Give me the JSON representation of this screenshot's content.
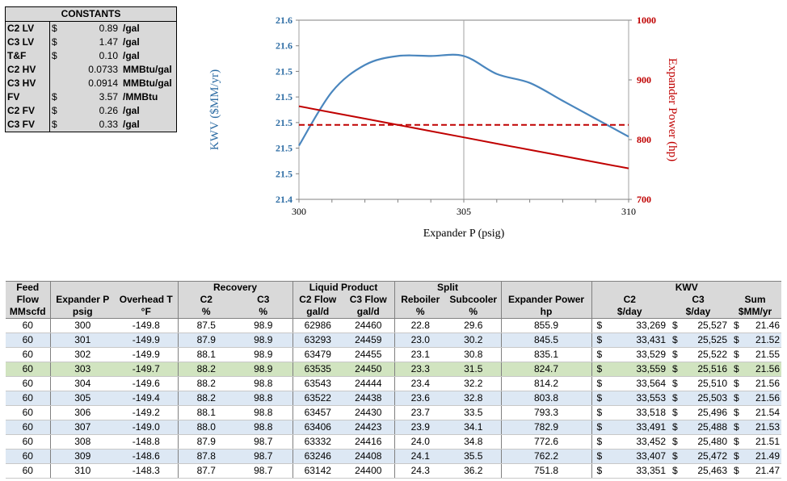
{
  "constants": {
    "title": "CONSTANTS",
    "rows": [
      {
        "label": "C2 LV",
        "currency": "$",
        "value": "0.89",
        "unit": "/gal"
      },
      {
        "label": "C3 LV",
        "currency": "$",
        "value": "1.47",
        "unit": "/gal"
      },
      {
        "label": "T&F",
        "currency": "$",
        "value": "0.10",
        "unit": "/gal"
      },
      {
        "label": "C2 HV",
        "currency": "",
        "value": "0.0733",
        "unit": "MMBtu/gal"
      },
      {
        "label": "C3 HV",
        "currency": "",
        "value": "0.0914",
        "unit": "MMBtu/gal"
      },
      {
        "label": "FV",
        "currency": "$",
        "value": "3.57",
        "unit": "/MMBtu"
      },
      {
        "label": "C2 FV",
        "currency": "$",
        "value": "0.26",
        "unit": "/gal"
      },
      {
        "label": "C3 FV",
        "currency": "$",
        "value": "0.33",
        "unit": "/gal"
      }
    ]
  },
  "chart_data": {
    "type": "line",
    "xlabel": "Expander P (psig)",
    "ylabel_left": "KWV ($MM/yr)",
    "ylabel_right": "Expander Power (hp)",
    "x_ticks": [
      "300",
      "305",
      "310"
    ],
    "xlim": [
      300,
      310
    ],
    "y_left_ticks": [
      "21.4",
      "21.5",
      "21.5",
      "21.5",
      "21.5",
      "21.5",
      "21.6",
      "21.6"
    ],
    "y_left_lim": [
      21.4,
      21.6
    ],
    "y_right_ticks": [
      "700",
      "800",
      "900",
      "1000"
    ],
    "y_right_lim": [
      700,
      1000
    ],
    "grid": "vertical",
    "colors": {
      "kwv": "#4a86be",
      "power": "#c00000",
      "axis_left": "#2e6da4",
      "axis_right": "#c00000"
    },
    "series": [
      {
        "axis": "left",
        "x": [
          300,
          301,
          302,
          303,
          304,
          305,
          306,
          307,
          308,
          309,
          310
        ],
        "values": [
          21.46,
          21.52,
          21.55,
          21.56,
          21.56,
          21.56,
          21.54,
          21.53,
          21.51,
          21.49,
          21.47
        ]
      },
      {
        "axis": "right",
        "x": [
          300,
          301,
          302,
          303,
          304,
          305,
          306,
          307,
          308,
          309,
          310
        ],
        "values": [
          855.9,
          845.5,
          835.1,
          824.7,
          814.2,
          803.8,
          793.3,
          782.9,
          772.6,
          762.2,
          751.8
        ]
      },
      {
        "axis": "right",
        "style": "dashed",
        "x": [
          300,
          310
        ],
        "values": [
          824.7,
          824.7
        ]
      }
    ]
  },
  "table": {
    "group_headers": {
      "feed": "Feed",
      "recovery": "Recovery",
      "liquid": "Liquid Product",
      "split": "Split",
      "kwv": "KWV"
    },
    "col_headers": [
      "Flow",
      "Expander P",
      "Overhead T",
      "C2",
      "C3",
      "C2 Flow",
      "C3 Flow",
      "Reboiler",
      "Subcooler",
      "Expander Power",
      "C2",
      "C3",
      "Sum"
    ],
    "units": [
      "MMscfd",
      "psig",
      "°F",
      "%",
      "%",
      "gal/d",
      "gal/d",
      "%",
      "%",
      "hp",
      "$/day",
      "$/day",
      "$MM/yr"
    ],
    "rows": [
      {
        "flow": "60",
        "p": "300",
        "t": "-149.8",
        "c2": "87.5",
        "c3": "98.9",
        "c2f": "62986",
        "c3f": "24460",
        "reb": "22.8",
        "sub": "29.6",
        "hp": "855.9",
        "kc2": "33,269",
        "kc3": "25,527",
        "sum": "21.46",
        "style": "white"
      },
      {
        "flow": "60",
        "p": "301",
        "t": "-149.9",
        "c2": "87.9",
        "c3": "98.9",
        "c2f": "63293",
        "c3f": "24459",
        "reb": "23.0",
        "sub": "30.2",
        "hp": "845.5",
        "kc2": "33,431",
        "kc3": "25,525",
        "sum": "21.52",
        "style": "blue"
      },
      {
        "flow": "60",
        "p": "302",
        "t": "-149.9",
        "c2": "88.1",
        "c3": "98.9",
        "c2f": "63479",
        "c3f": "24455",
        "reb": "23.1",
        "sub": "30.8",
        "hp": "835.1",
        "kc2": "33,529",
        "kc3": "25,522",
        "sum": "21.55",
        "style": "white"
      },
      {
        "flow": "60",
        "p": "303",
        "t": "-149.7",
        "c2": "88.2",
        "c3": "98.9",
        "c2f": "63535",
        "c3f": "24450",
        "reb": "23.3",
        "sub": "31.5",
        "hp": "824.7",
        "kc2": "33,559",
        "kc3": "25,516",
        "sum": "21.56",
        "style": "green"
      },
      {
        "flow": "60",
        "p": "304",
        "t": "-149.6",
        "c2": "88.2",
        "c3": "98.8",
        "c2f": "63543",
        "c3f": "24444",
        "reb": "23.4",
        "sub": "32.2",
        "hp": "814.2",
        "kc2": "33,564",
        "kc3": "25,510",
        "sum": "21.56",
        "style": "white"
      },
      {
        "flow": "60",
        "p": "305",
        "t": "-149.4",
        "c2": "88.2",
        "c3": "98.8",
        "c2f": "63522",
        "c3f": "24438",
        "reb": "23.6",
        "sub": "32.8",
        "hp": "803.8",
        "kc2": "33,553",
        "kc3": "25,503",
        "sum": "21.56",
        "style": "blue"
      },
      {
        "flow": "60",
        "p": "306",
        "t": "-149.2",
        "c2": "88.1",
        "c3": "98.8",
        "c2f": "63457",
        "c3f": "24430",
        "reb": "23.7",
        "sub": "33.5",
        "hp": "793.3",
        "kc2": "33,518",
        "kc3": "25,496",
        "sum": "21.54",
        "style": "white"
      },
      {
        "flow": "60",
        "p": "307",
        "t": "-149.0",
        "c2": "88.0",
        "c3": "98.8",
        "c2f": "63406",
        "c3f": "24423",
        "reb": "23.9",
        "sub": "34.1",
        "hp": "782.9",
        "kc2": "33,491",
        "kc3": "25,488",
        "sum": "21.53",
        "style": "blue"
      },
      {
        "flow": "60",
        "p": "308",
        "t": "-148.8",
        "c2": "87.9",
        "c3": "98.7",
        "c2f": "63332",
        "c3f": "24416",
        "reb": "24.0",
        "sub": "34.8",
        "hp": "772.6",
        "kc2": "33,452",
        "kc3": "25,480",
        "sum": "21.51",
        "style": "white"
      },
      {
        "flow": "60",
        "p": "309",
        "t": "-148.6",
        "c2": "87.8",
        "c3": "98.7",
        "c2f": "63246",
        "c3f": "24408",
        "reb": "24.1",
        "sub": "35.5",
        "hp": "762.2",
        "kc2": "33,407",
        "kc3": "25,472",
        "sum": "21.49",
        "style": "blue"
      },
      {
        "flow": "60",
        "p": "310",
        "t": "-148.3",
        "c2": "87.7",
        "c3": "98.7",
        "c2f": "63142",
        "c3f": "24400",
        "reb": "24.3",
        "sub": "36.2",
        "hp": "751.8",
        "kc2": "33,351",
        "kc3": "25,463",
        "sum": "21.47",
        "style": "white"
      }
    ]
  }
}
